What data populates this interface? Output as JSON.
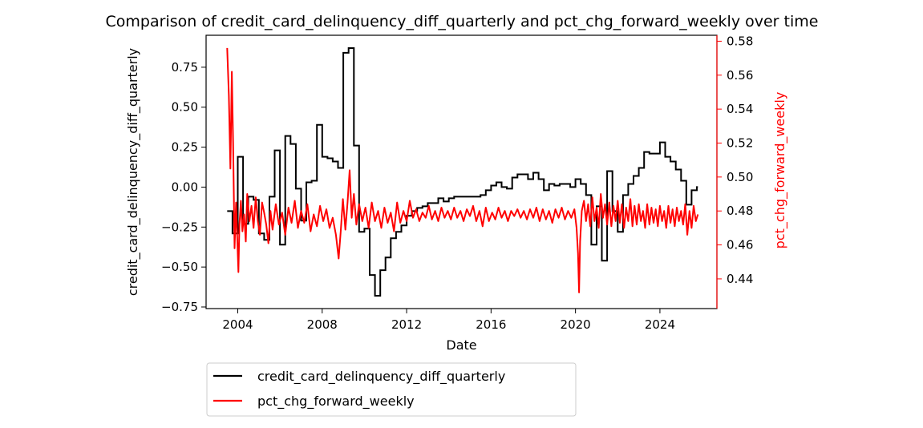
{
  "chart_data": {
    "type": "line",
    "title": "Comparison of credit_card_delinquency_diff_quarterly and pct_chg_forward_weekly over time",
    "xlabel": "Date",
    "ylabel_left": "credit_card_delinquency_diff_quarterly",
    "ylabel_right": "pct_chg_forward_weekly",
    "x_ticks": [
      "2004",
      "2008",
      "2012",
      "2016",
      "2020",
      "2024"
    ],
    "y_left_ticks": [
      "−0.75",
      "−0.50",
      "−0.25",
      "0.00",
      "0.25",
      "0.50",
      "0.75"
    ],
    "y_right_ticks": [
      "0.44",
      "0.46",
      "0.48",
      "0.50",
      "0.52",
      "0.54",
      "0.56",
      "0.58"
    ],
    "xlim": [
      2002.5,
      2026.7
    ],
    "ylim_left": [
      -0.76,
      0.95
    ],
    "ylim_right": [
      0.4225,
      0.5835
    ],
    "legend_position": "below-left",
    "colors": {
      "left": "#000000",
      "right": "#ff0000",
      "right_axis": "#ff0000"
    },
    "series": [
      {
        "name": "credit_card_delinquency_diff_quarterly",
        "axis": "left",
        "style": "step",
        "points": [
          [
            2003.5,
            -0.15
          ],
          [
            2003.75,
            -0.29
          ],
          [
            2004.0,
            0.19
          ],
          [
            2004.25,
            -0.23
          ],
          [
            2004.5,
            -0.06
          ],
          [
            2004.75,
            -0.08
          ],
          [
            2005.0,
            -0.29
          ],
          [
            2005.25,
            -0.33
          ],
          [
            2005.5,
            -0.06
          ],
          [
            2005.75,
            0.23
          ],
          [
            2006.0,
            -0.36
          ],
          [
            2006.25,
            0.32
          ],
          [
            2006.5,
            0.27
          ],
          [
            2006.75,
            -0.01
          ],
          [
            2007.0,
            -0.21
          ],
          [
            2007.25,
            0.03
          ],
          [
            2007.5,
            0.04
          ],
          [
            2007.75,
            0.39
          ],
          [
            2008.0,
            0.19
          ],
          [
            2008.25,
            0.18
          ],
          [
            2008.5,
            0.16
          ],
          [
            2008.75,
            0.12
          ],
          [
            2009.0,
            0.84
          ],
          [
            2009.25,
            0.87
          ],
          [
            2009.5,
            0.26
          ],
          [
            2009.75,
            -0.28
          ],
          [
            2010.0,
            -0.26
          ],
          [
            2010.25,
            -0.55
          ],
          [
            2010.5,
            -0.68
          ],
          [
            2010.75,
            -0.52
          ],
          [
            2011.0,
            -0.44
          ],
          [
            2011.25,
            -0.32
          ],
          [
            2011.5,
            -0.28
          ],
          [
            2011.75,
            -0.24
          ],
          [
            2012.0,
            -0.18
          ],
          [
            2012.25,
            -0.15
          ],
          [
            2012.5,
            -0.13
          ],
          [
            2012.75,
            -0.12
          ],
          [
            2013.0,
            -0.1
          ],
          [
            2013.25,
            -0.1
          ],
          [
            2013.5,
            -0.07
          ],
          [
            2013.75,
            -0.09
          ],
          [
            2014.0,
            -0.07
          ],
          [
            2014.25,
            -0.06
          ],
          [
            2014.5,
            -0.06
          ],
          [
            2014.75,
            -0.06
          ],
          [
            2015.0,
            -0.06
          ],
          [
            2015.25,
            -0.06
          ],
          [
            2015.5,
            -0.05
          ],
          [
            2015.75,
            -0.02
          ],
          [
            2016.0,
            0.01
          ],
          [
            2016.25,
            0.03
          ],
          [
            2016.5,
            0.0
          ],
          [
            2016.75,
            -0.01
          ],
          [
            2017.0,
            0.06
          ],
          [
            2017.25,
            0.08
          ],
          [
            2017.5,
            0.08
          ],
          [
            2017.75,
            0.05
          ],
          [
            2018.0,
            0.09
          ],
          [
            2018.25,
            0.05
          ],
          [
            2018.5,
            -0.02
          ],
          [
            2018.75,
            0.02
          ],
          [
            2019.0,
            0.01
          ],
          [
            2019.25,
            0.02
          ],
          [
            2019.5,
            0.02
          ],
          [
            2019.75,
            0.0
          ],
          [
            2020.0,
            0.05
          ],
          [
            2020.25,
            0.02
          ],
          [
            2020.5,
            -0.05
          ],
          [
            2020.75,
            -0.36
          ],
          [
            2021.0,
            -0.12
          ],
          [
            2021.25,
            -0.46
          ],
          [
            2021.5,
            0.1
          ],
          [
            2021.75,
            -0.15
          ],
          [
            2022.0,
            -0.28
          ],
          [
            2022.25,
            -0.05
          ],
          [
            2022.5,
            0.02
          ],
          [
            2022.75,
            0.07
          ],
          [
            2023.0,
            0.12
          ],
          [
            2023.25,
            0.22
          ],
          [
            2023.5,
            0.21
          ],
          [
            2023.75,
            0.21
          ],
          [
            2024.0,
            0.28
          ],
          [
            2024.25,
            0.19
          ],
          [
            2024.5,
            0.16
          ],
          [
            2024.75,
            0.11
          ],
          [
            2025.0,
            0.04
          ],
          [
            2025.25,
            -0.11
          ],
          [
            2025.5,
            -0.02
          ],
          [
            2025.75,
            0.0
          ],
          [
            2025.8,
            0.0
          ]
        ]
      },
      {
        "name": "pct_chg_forward_weekly",
        "axis": "right",
        "style": "line",
        "points": [
          [
            2003.5,
            0.576
          ],
          [
            2003.58,
            0.548
          ],
          [
            2003.65,
            0.505
          ],
          [
            2003.72,
            0.562
          ],
          [
            2003.78,
            0.52
          ],
          [
            2003.85,
            0.458
          ],
          [
            2003.92,
            0.485
          ],
          [
            2003.98,
            0.462
          ],
          [
            2004.03,
            0.444
          ],
          [
            2004.08,
            0.472
          ],
          [
            2004.15,
            0.486
          ],
          [
            2004.22,
            0.468
          ],
          [
            2004.3,
            0.478
          ],
          [
            2004.38,
            0.462
          ],
          [
            2004.45,
            0.49
          ],
          [
            2004.55,
            0.474
          ],
          [
            2004.65,
            0.483
          ],
          [
            2004.75,
            0.47
          ],
          [
            2004.85,
            0.488
          ],
          [
            2004.95,
            0.474
          ],
          [
            2005.05,
            0.466
          ],
          [
            2005.15,
            0.485
          ],
          [
            2005.25,
            0.479
          ],
          [
            2005.35,
            0.472
          ],
          [
            2005.45,
            0.461
          ],
          [
            2005.55,
            0.48
          ],
          [
            2005.65,
            0.469
          ],
          [
            2005.8,
            0.484
          ],
          [
            2005.95,
            0.472
          ],
          [
            2006.1,
            0.479
          ],
          [
            2006.25,
            0.466
          ],
          [
            2006.4,
            0.482
          ],
          [
            2006.55,
            0.473
          ],
          [
            2006.7,
            0.486
          ],
          [
            2006.85,
            0.47
          ],
          [
            2007.0,
            0.48
          ],
          [
            2007.15,
            0.473
          ],
          [
            2007.3,
            0.484
          ],
          [
            2007.45,
            0.468
          ],
          [
            2007.6,
            0.478
          ],
          [
            2007.75,
            0.471
          ],
          [
            2007.9,
            0.483
          ],
          [
            2008.05,
            0.474
          ],
          [
            2008.2,
            0.481
          ],
          [
            2008.35,
            0.47
          ],
          [
            2008.5,
            0.476
          ],
          [
            2008.65,
            0.466
          ],
          [
            2008.78,
            0.452
          ],
          [
            2008.88,
            0.468
          ],
          [
            2008.98,
            0.487
          ],
          [
            2009.1,
            0.469
          ],
          [
            2009.2,
            0.485
          ],
          [
            2009.3,
            0.504
          ],
          [
            2009.4,
            0.476
          ],
          [
            2009.5,
            0.49
          ],
          [
            2009.62,
            0.472
          ],
          [
            2009.75,
            0.484
          ],
          [
            2009.9,
            0.474
          ],
          [
            2010.05,
            0.482
          ],
          [
            2010.2,
            0.47
          ],
          [
            2010.35,
            0.485
          ],
          [
            2010.5,
            0.474
          ],
          [
            2010.65,
            0.48
          ],
          [
            2010.8,
            0.47
          ],
          [
            2010.95,
            0.482
          ],
          [
            2011.1,
            0.473
          ],
          [
            2011.25,
            0.479
          ],
          [
            2011.4,
            0.468
          ],
          [
            2011.55,
            0.485
          ],
          [
            2011.7,
            0.473
          ],
          [
            2011.85,
            0.48
          ],
          [
            2012.0,
            0.474
          ],
          [
            2012.15,
            0.486
          ],
          [
            2012.3,
            0.476
          ],
          [
            2012.45,
            0.481
          ],
          [
            2012.6,
            0.474
          ],
          [
            2012.75,
            0.479
          ],
          [
            2012.9,
            0.476
          ],
          [
            2013.05,
            0.483
          ],
          [
            2013.2,
            0.475
          ],
          [
            2013.35,
            0.48
          ],
          [
            2013.5,
            0.474
          ],
          [
            2013.65,
            0.482
          ],
          [
            2013.8,
            0.476
          ],
          [
            2013.95,
            0.48
          ],
          [
            2014.1,
            0.475
          ],
          [
            2014.25,
            0.482
          ],
          [
            2014.4,
            0.476
          ],
          [
            2014.55,
            0.48
          ],
          [
            2014.7,
            0.474
          ],
          [
            2014.85,
            0.481
          ],
          [
            2015.0,
            0.477
          ],
          [
            2015.15,
            0.483
          ],
          [
            2015.3,
            0.474
          ],
          [
            2015.45,
            0.48
          ],
          [
            2015.6,
            0.471
          ],
          [
            2015.75,
            0.482
          ],
          [
            2015.9,
            0.474
          ],
          [
            2016.05,
            0.479
          ],
          [
            2016.2,
            0.475
          ],
          [
            2016.35,
            0.482
          ],
          [
            2016.5,
            0.476
          ],
          [
            2016.65,
            0.48
          ],
          [
            2016.8,
            0.474
          ],
          [
            2016.95,
            0.48
          ],
          [
            2017.1,
            0.477
          ],
          [
            2017.25,
            0.481
          ],
          [
            2017.4,
            0.476
          ],
          [
            2017.55,
            0.48
          ],
          [
            2017.7,
            0.475
          ],
          [
            2017.85,
            0.481
          ],
          [
            2018.0,
            0.476
          ],
          [
            2018.15,
            0.482
          ],
          [
            2018.3,
            0.474
          ],
          [
            2018.45,
            0.481
          ],
          [
            2018.6,
            0.475
          ],
          [
            2018.75,
            0.48
          ],
          [
            2018.9,
            0.473
          ],
          [
            2019.05,
            0.481
          ],
          [
            2019.2,
            0.476
          ],
          [
            2019.35,
            0.482
          ],
          [
            2019.5,
            0.475
          ],
          [
            2019.65,
            0.48
          ],
          [
            2019.8,
            0.476
          ],
          [
            2019.95,
            0.481
          ],
          [
            2020.05,
            0.47
          ],
          [
            2020.12,
            0.455
          ],
          [
            2020.17,
            0.432
          ],
          [
            2020.22,
            0.462
          ],
          [
            2020.3,
            0.48
          ],
          [
            2020.4,
            0.486
          ],
          [
            2020.5,
            0.474
          ],
          [
            2020.6,
            0.484
          ],
          [
            2020.7,
            0.471
          ],
          [
            2020.8,
            0.488
          ],
          [
            2020.9,
            0.474
          ],
          [
            2021.0,
            0.482
          ],
          [
            2021.1,
            0.47
          ],
          [
            2021.2,
            0.49
          ],
          [
            2021.3,
            0.476
          ],
          [
            2021.4,
            0.484
          ],
          [
            2021.5,
            0.472
          ],
          [
            2021.6,
            0.485
          ],
          [
            2021.7,
            0.471
          ],
          [
            2021.8,
            0.483
          ],
          [
            2021.9,
            0.474
          ],
          [
            2022.0,
            0.486
          ],
          [
            2022.1,
            0.473
          ],
          [
            2022.2,
            0.484
          ],
          [
            2022.3,
            0.47
          ],
          [
            2022.4,
            0.482
          ],
          [
            2022.5,
            0.474
          ],
          [
            2022.6,
            0.487
          ],
          [
            2022.7,
            0.471
          ],
          [
            2022.8,
            0.483
          ],
          [
            2022.9,
            0.472
          ],
          [
            2023.0,
            0.484
          ],
          [
            2023.1,
            0.474
          ],
          [
            2023.2,
            0.48
          ],
          [
            2023.3,
            0.47
          ],
          [
            2023.4,
            0.484
          ],
          [
            2023.5,
            0.472
          ],
          [
            2023.6,
            0.482
          ],
          [
            2023.7,
            0.473
          ],
          [
            2023.8,
            0.481
          ],
          [
            2023.9,
            0.471
          ],
          [
            2024.0,
            0.483
          ],
          [
            2024.1,
            0.474
          ],
          [
            2024.2,
            0.48
          ],
          [
            2024.3,
            0.47
          ],
          [
            2024.4,
            0.483
          ],
          [
            2024.5,
            0.473
          ],
          [
            2024.6,
            0.481
          ],
          [
            2024.7,
            0.471
          ],
          [
            2024.8,
            0.482
          ],
          [
            2024.9,
            0.474
          ],
          [
            2025.0,
            0.48
          ],
          [
            2025.1,
            0.472
          ],
          [
            2025.2,
            0.484
          ],
          [
            2025.3,
            0.466
          ],
          [
            2025.4,
            0.48
          ],
          [
            2025.5,
            0.47
          ],
          [
            2025.6,
            0.483
          ],
          [
            2025.7,
            0.474
          ],
          [
            2025.8,
            0.478
          ]
        ]
      }
    ]
  }
}
